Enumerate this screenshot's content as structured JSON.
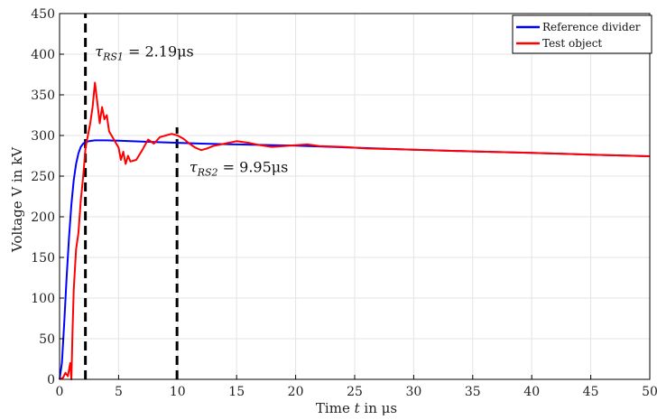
{
  "chart_data": {
    "type": "line",
    "xlabel_prefix": "Time ",
    "xlabel_var": "t",
    "xlabel_suffix": " in μs",
    "ylabel": "Voltage V in kV",
    "xlim": [
      0,
      50
    ],
    "ylim": [
      0,
      450
    ],
    "xticks": [
      0,
      5,
      10,
      15,
      20,
      25,
      30,
      35,
      40,
      45,
      50
    ],
    "yticks": [
      0,
      50,
      100,
      150,
      200,
      250,
      300,
      350,
      400,
      450
    ],
    "grid": true,
    "legend_position": "top-right",
    "series": [
      {
        "name": "Reference divider",
        "color": "#0000ff",
        "x": [
          0,
          0.2,
          0.4,
          0.6,
          0.8,
          1.0,
          1.2,
          1.4,
          1.6,
          1.8,
          2.0,
          2.2,
          2.5,
          3.0,
          4,
          5,
          6,
          8,
          10,
          12,
          15,
          20,
          25,
          30,
          35,
          40,
          45,
          50
        ],
        "y": [
          0,
          20,
          70,
          125,
          175,
          215,
          245,
          265,
          278,
          286,
          290,
          292,
          293,
          294,
          294,
          293.5,
          293,
          292,
          291,
          290,
          289,
          287.5,
          285,
          282.5,
          280.5,
          278.5,
          276.5,
          274.5
        ]
      },
      {
        "name": "Test object",
        "color": "#ff0000",
        "x": [
          0,
          0.3,
          0.5,
          0.7,
          0.9,
          1.0,
          1.1,
          1.2,
          1.4,
          1.6,
          1.8,
          2.0,
          2.2,
          2.4,
          2.6,
          2.8,
          3.0,
          3.2,
          3.4,
          3.6,
          3.8,
          4.0,
          4.2,
          4.4,
          4.6,
          4.8,
          5.0,
          5.2,
          5.4,
          5.6,
          5.8,
          6.0,
          6.5,
          7.0,
          7.5,
          8.0,
          8.5,
          9.0,
          9.5,
          10.0,
          10.5,
          11.0,
          11.5,
          12.0,
          12.5,
          13.0,
          14.0,
          15.0,
          16.0,
          17.0,
          18.0,
          19.0,
          20.0,
          21.0,
          22.0,
          24.0,
          26.0,
          30.0,
          35.0,
          40.0,
          45.0,
          50.0
        ],
        "y": [
          0,
          2,
          8,
          4,
          20,
          0,
          60,
          110,
          160,
          180,
          220,
          250,
          285,
          300,
          315,
          335,
          365,
          340,
          315,
          335,
          320,
          325,
          305,
          300,
          295,
          290,
          285,
          270,
          280,
          265,
          275,
          268,
          270,
          282,
          295,
          290,
          298,
          300,
          302,
          300,
          296,
          290,
          285,
          282,
          284,
          287,
          290,
          293,
          291,
          288,
          286,
          287,
          288,
          289,
          287,
          286,
          284,
          282.5,
          280.5,
          278.5,
          276.5,
          274.5
        ]
      }
    ],
    "markers": [
      {
        "x": 2.19,
        "y_top": 450,
        "style": "dashed",
        "label_symbol": "τ",
        "label_sub": "RS1",
        "label_value": " = 2.19μs",
        "label_x": 3.0,
        "label_y": 397
      },
      {
        "x": 9.95,
        "y_top": 310,
        "style": "dashed",
        "label_symbol": "τ",
        "label_sub": "RS2",
        "label_value": " = 9.95μs",
        "label_x": 11.0,
        "label_y": 255
      }
    ]
  }
}
